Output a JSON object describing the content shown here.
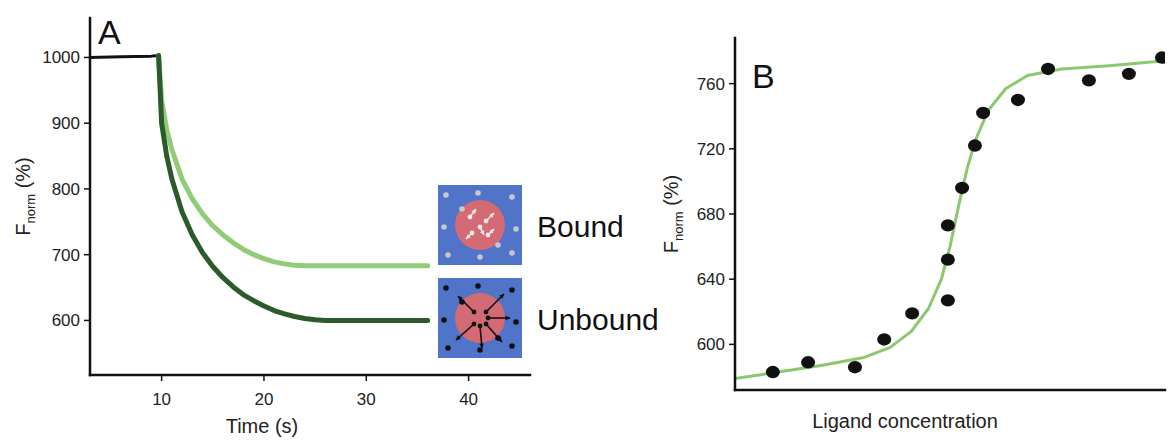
{
  "chart_data": [
    {
      "type": "line",
      "panel": "A",
      "xlabel": "Time (s)",
      "ylabel": [
        "F",
        "norm",
        " (%)"
      ],
      "x": [
        3,
        6,
        9,
        9.7,
        10,
        10.5,
        11,
        12,
        13,
        14,
        15,
        16,
        17,
        18,
        19,
        20,
        21,
        22,
        23,
        24,
        25,
        26,
        28,
        30,
        32,
        34,
        36
      ],
      "series": [
        {
          "color": "#111111",
          "values": [
            1000,
            1001,
            1002,
            1003,
            null,
            null,
            null,
            null,
            null,
            null,
            null,
            null,
            null,
            null,
            null,
            null,
            null,
            null,
            null,
            null,
            null,
            null,
            null,
            null,
            null,
            null,
            null
          ]
        },
        {
          "name": "Bound",
          "color": "#92cc78",
          "values": [
            null,
            null,
            null,
            1003,
            935,
            890,
            860,
            815,
            785,
            762,
            744,
            730,
            718,
            708,
            700,
            694,
            689,
            686,
            684,
            683,
            683,
            683,
            683,
            683,
            683,
            683,
            683
          ]
        },
        {
          "name": "Unbound",
          "color": "#2b5a2b",
          "values": [
            null,
            null,
            null,
            1003,
            900,
            850,
            815,
            765,
            730,
            703,
            682,
            665,
            651,
            639,
            630,
            622,
            615,
            610,
            606,
            603,
            601,
            600,
            600,
            600,
            600,
            600,
            600
          ]
        }
      ],
      "xlim": [
        3,
        46
      ],
      "xticks": [
        10,
        20,
        30,
        40
      ],
      "ylim": [
        517,
        1060
      ],
      "yticks": [
        600,
        700,
        800,
        900,
        1000
      ],
      "grid": false,
      "legend": "right"
    },
    {
      "type": "scatter",
      "panel": "B",
      "xlabel": "Ligand concentration",
      "ylabel": [
        "F",
        "norm",
        " (%)"
      ],
      "series": [
        {
          "type": "line",
          "color": "#8cc870",
          "x": [
            0,
            10,
            20,
            30,
            36,
            41,
            45,
            48,
            50,
            52,
            54,
            56,
            59,
            63,
            68,
            76,
            87,
            100
          ],
          "values": [
            579,
            583,
            587,
            592,
            598,
            608,
            622,
            640,
            660,
            685,
            708,
            726,
            744,
            757,
            765,
            769,
            771,
            774
          ]
        },
        {
          "type": "scatter",
          "marker": "circle",
          "color": "#111111",
          "x": [
            8.8,
            17,
            27.9,
            34.7,
            41.2,
            49.5,
            49.5,
            49.5,
            52.8,
            55.8,
            57.7,
            65.8,
            72.8,
            82.3,
            91.6,
            99.3
          ],
          "values": [
            583,
            589,
            586,
            603,
            619,
            627,
            652,
            673,
            696,
            722,
            742,
            750,
            769,
            762,
            766,
            776
          ]
        }
      ],
      "xlim": [
        0,
        100
      ],
      "ylim": [
        572,
        788
      ],
      "yticks": [
        600,
        640,
        680,
        720,
        760
      ],
      "grid": false,
      "tick_labels": "y"
    }
  ]
}
